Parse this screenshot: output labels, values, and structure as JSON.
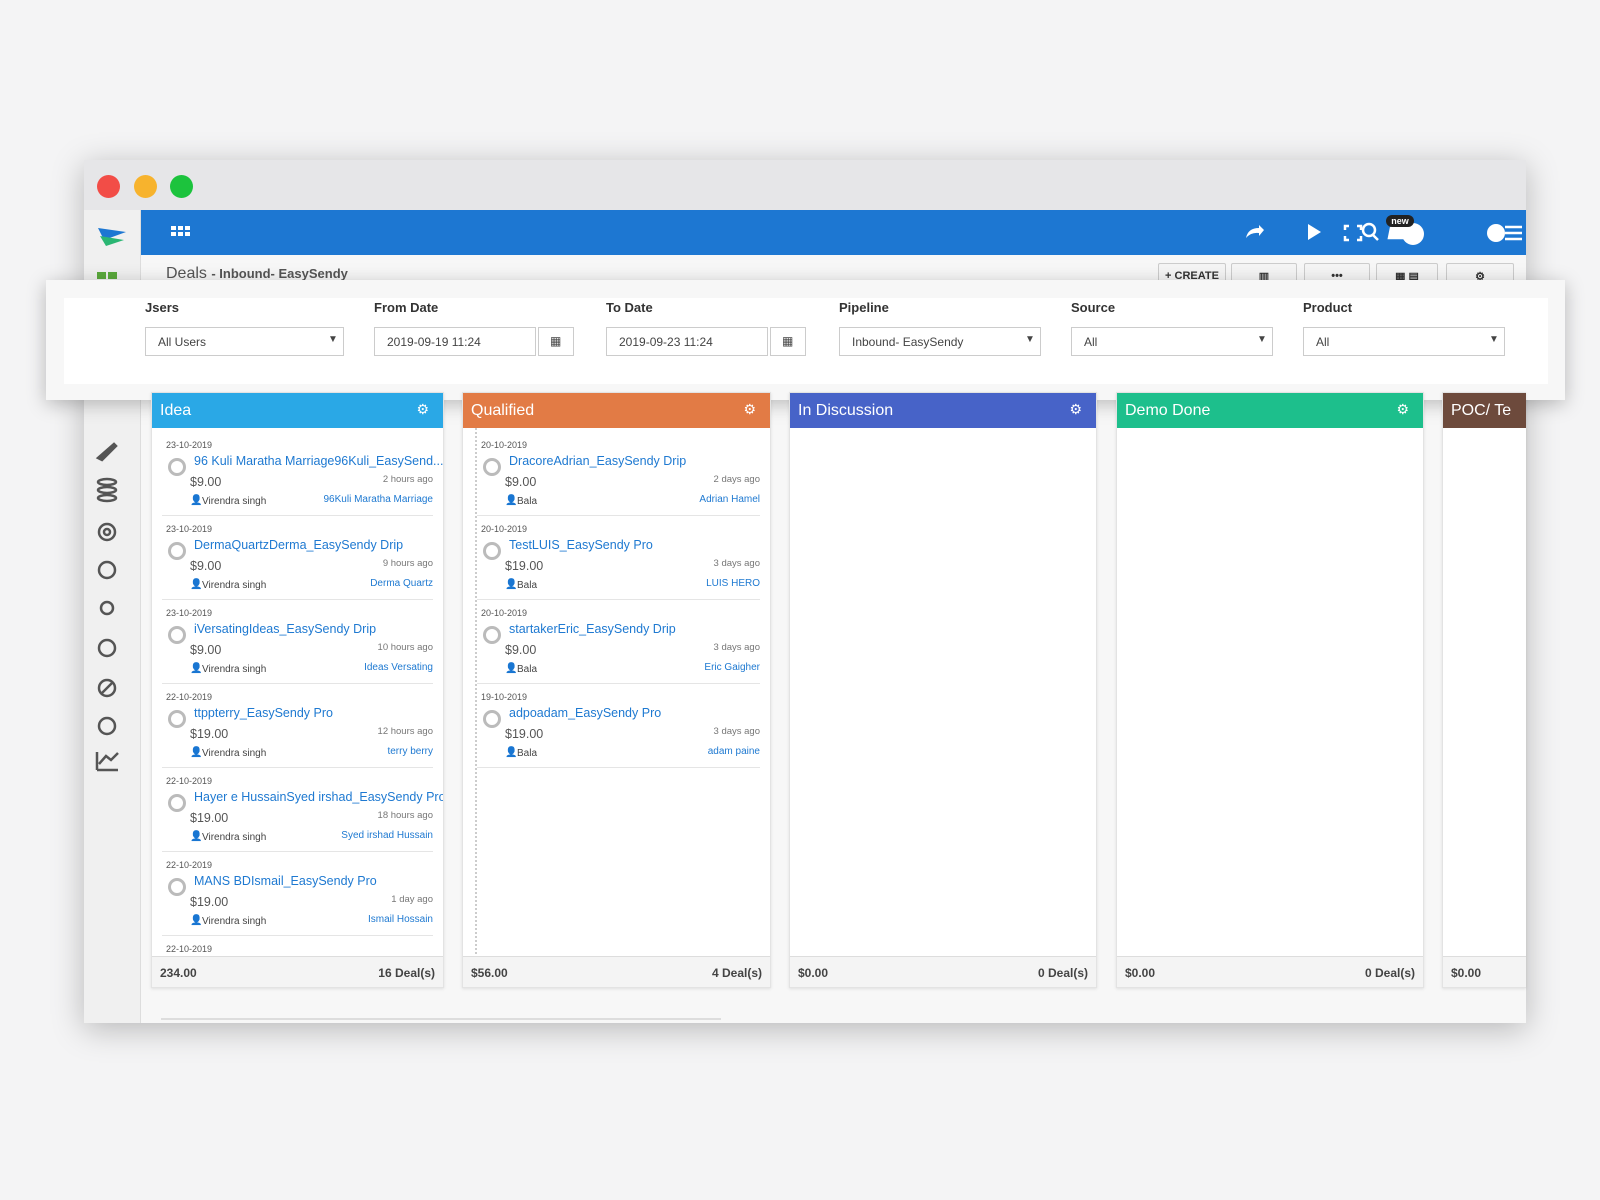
{
  "header": {
    "title": "Deals",
    "subtitle": "- Inbound- EasySendy",
    "create": "CREATE",
    "badge": "new"
  },
  "filters": [
    {
      "label": "Jsers",
      "value": "All Users"
    },
    {
      "label": "From Date",
      "value": "2019-09-19 11:24"
    },
    {
      "label": "To Date",
      "value": "2019-09-23 11:24"
    },
    {
      "label": "Pipeline",
      "value": "Inbound- EasySendy"
    },
    {
      "label": "Source",
      "value": "All"
    },
    {
      "label": "Product",
      "value": "All"
    }
  ],
  "columns": [
    {
      "title": "Idea",
      "color": "#2aa8e6",
      "total": "234.00",
      "count": "16 Deal(s)",
      "cards": [
        {
          "date": "23-10-2019",
          "name": "96 Kuli Maratha Marriage96Kuli_EasySend...",
          "amount": "$9.00",
          "time": "2 hours ago",
          "owner": "Virendra singh",
          "contact": "96Kuli Maratha Marriage"
        },
        {
          "date": "23-10-2019",
          "name": "DermaQuartzDerma_EasySendy Drip",
          "amount": "$9.00",
          "time": "9 hours ago",
          "owner": "Virendra singh",
          "contact": "Derma Quartz"
        },
        {
          "date": "23-10-2019",
          "name": "iVersatingIdeas_EasySendy Drip",
          "amount": "$9.00",
          "time": "10 hours ago",
          "owner": "Virendra singh",
          "contact": "Ideas Versating"
        },
        {
          "date": "22-10-2019",
          "name": "ttppterry_EasySendy Pro",
          "amount": "$19.00",
          "time": "12 hours ago",
          "owner": "Virendra singh",
          "contact": "terry berry"
        },
        {
          "date": "22-10-2019",
          "name": "Hayer e HussainSyed irshad_EasySendy Pro",
          "amount": "$19.00",
          "time": "18 hours ago",
          "owner": "Virendra singh",
          "contact": "Syed irshad Hussain"
        },
        {
          "date": "22-10-2019",
          "name": "MANS BDIsmail_EasySendy Pro",
          "amount": "$19.00",
          "time": "1 day ago",
          "owner": "Virendra singh",
          "contact": "Ismail Hossain"
        },
        {
          "date": "22-10-2019"
        }
      ]
    },
    {
      "title": "Qualified",
      "color": "#e27b45",
      "total": "$56.00",
      "count": "4 Deal(s)",
      "cards": [
        {
          "date": "20-10-2019",
          "name": "DracoreAdrian_EasySendy Drip",
          "amount": "$9.00",
          "time": "2 days ago",
          "owner": "Bala",
          "contact": "Adrian Hamel"
        },
        {
          "date": "20-10-2019",
          "name": "TestLUIS_EasySendy Pro",
          "amount": "$19.00",
          "time": "3 days ago",
          "owner": "Bala",
          "contact": "LUIS HERO"
        },
        {
          "date": "20-10-2019",
          "name": "startakerEric_EasySendy Drip",
          "amount": "$9.00",
          "time": "3 days ago",
          "owner": "Bala",
          "contact": "Eric Gaigher"
        },
        {
          "date": "19-10-2019",
          "name": "adpoadam_EasySendy Pro",
          "amount": "$19.00",
          "time": "3 days ago",
          "owner": "Bala",
          "contact": "adam paine"
        }
      ]
    },
    {
      "title": "In Discussion",
      "color": "#4763c8",
      "total": "$0.00",
      "count": "0 Deal(s)",
      "cards": []
    },
    {
      "title": "Demo Done",
      "color": "#1dbf8c",
      "total": "$0.00",
      "count": "0 Deal(s)",
      "cards": []
    },
    {
      "title": "POC/ Te",
      "color": "#6d4a3c",
      "total": "$0.00",
      "cards": []
    }
  ]
}
